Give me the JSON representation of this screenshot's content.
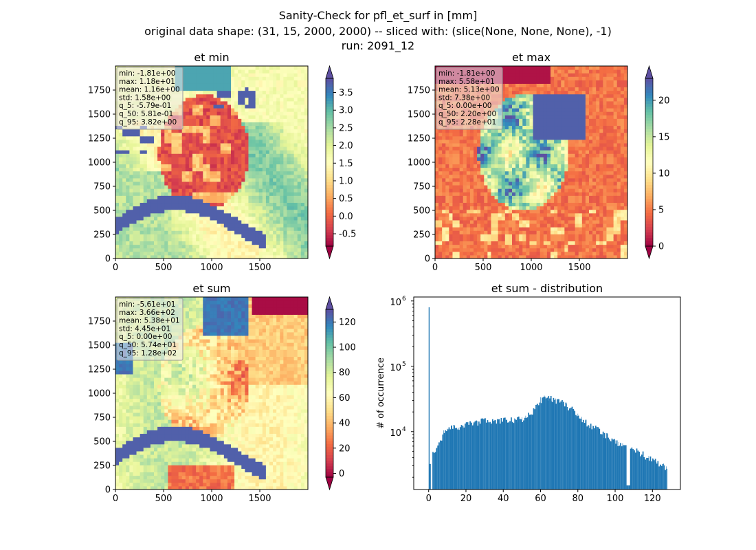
{
  "suptitle": {
    "line1": "Sanity-Check for pfl_et_surf in [mm]",
    "line2": "original data shape: (31, 15, 2000, 2000) -- sliced with: (slice(None, None, None), -1)",
    "line3": "run: 2091_12"
  },
  "colors": {
    "bar": "#1f77b4",
    "colormap": [
      "#9e0142",
      "#d53e4f",
      "#f46d43",
      "#fdae61",
      "#fee08b",
      "#ffffbf",
      "#e6f598",
      "#abdda4",
      "#66c2a5",
      "#3288bd",
      "#5e4fa2"
    ]
  },
  "chart_data": [
    {
      "type": "heatmap",
      "title": "et min",
      "colormap": "Spectral",
      "xlim": [
        0,
        2000
      ],
      "ylim": [
        0,
        2000
      ],
      "xticks": [
        "0",
        "500",
        "1000",
        "1500"
      ],
      "yticks": [
        "0",
        "250",
        "500",
        "750",
        "1000",
        "1250",
        "1500",
        "1750"
      ],
      "colorbar": {
        "range": [
          -0.85,
          3.9
        ],
        "extend": "both",
        "ticks": [
          "-0.5",
          "0.0",
          "0.5",
          "1.0",
          "1.5",
          "2.0",
          "2.5",
          "3.0",
          "3.5"
        ]
      },
      "stats": [
        "min: -1.81e+00",
        "max: 1.18e+01",
        "mean: 1.16e+00",
        "std: 1.58e+00",
        "q_5: -5.79e-01",
        "q_50: 5.81e-01",
        "q_95: 3.82e+00"
      ]
    },
    {
      "type": "heatmap",
      "title": "et max",
      "colormap": "Spectral",
      "xlim": [
        0,
        2000
      ],
      "ylim": [
        0,
        2000
      ],
      "xticks": [
        "0",
        "500",
        "1000",
        "1500"
      ],
      "yticks": [
        "0",
        "250",
        "500",
        "750",
        "1000",
        "1250",
        "1500",
        "1750"
      ],
      "colorbar": {
        "range": [
          0,
          23
        ],
        "extend": "both",
        "ticks": [
          "0",
          "5",
          "10",
          "15",
          "20"
        ]
      },
      "stats": [
        "min: -1.81e+00",
        "max: 5.58e+01",
        "mean: 5.13e+00",
        "std: 7.38e+00",
        "q_5: 0.00e+00",
        "q_50: 2.20e+00",
        "q_95: 2.28e+01"
      ]
    },
    {
      "type": "heatmap",
      "title": "et sum",
      "colormap": "Spectral",
      "xlim": [
        0,
        2000
      ],
      "ylim": [
        0,
        2000
      ],
      "xticks": [
        "0",
        "500",
        "1000",
        "1500"
      ],
      "yticks": [
        "0",
        "250",
        "500",
        "750",
        "1000",
        "1250",
        "1500",
        "1750"
      ],
      "colorbar": {
        "range": [
          -3,
          130
        ],
        "extend": "both",
        "ticks": [
          "0",
          "20",
          "40",
          "60",
          "80",
          "100",
          "120"
        ]
      },
      "stats": [
        "min: -5.61e+01",
        "max: 3.66e+02",
        "mean: 5.38e+01",
        "std: 4.45e+01",
        "q_5: 0.00e+00",
        "q_50: 5.74e+01",
        "q_95: 1.28e+02"
      ]
    },
    {
      "type": "bar",
      "title": "et sum - distribution",
      "xlabel": "",
      "ylabel": "# of occurrence",
      "yscale": "log",
      "xlim": [
        -8,
        135
      ],
      "ylim": [
        1300,
        1150000
      ],
      "xticks": [
        "0",
        "20",
        "40",
        "60",
        "80",
        "100",
        "120"
      ],
      "xtick_values": [
        0,
        20,
        40,
        60,
        80,
        100,
        120
      ],
      "yticks": [
        {
          "value": 10000,
          "label": "10",
          "exp": "4"
        },
        {
          "value": 100000,
          "label": "10",
          "exp": "5"
        },
        {
          "value": 1000000,
          "label": "10",
          "exp": "6"
        }
      ],
      "bin_width": 0.64,
      "bins": [
        {
          "x": 0.0,
          "y": 800000
        },
        {
          "x": 0.5,
          "y": 3200
        },
        {
          "x": 2,
          "y": 4500
        },
        {
          "x": 4,
          "y": 5400
        },
        {
          "x": 6,
          "y": 7200
        },
        {
          "x": 8,
          "y": 9500
        },
        {
          "x": 10,
          "y": 10800
        },
        {
          "x": 12,
          "y": 11200
        },
        {
          "x": 14,
          "y": 11800
        },
        {
          "x": 16,
          "y": 11300
        },
        {
          "x": 18,
          "y": 12000
        },
        {
          "x": 20,
          "y": 12800
        },
        {
          "x": 22,
          "y": 13300
        },
        {
          "x": 24,
          "y": 13800
        },
        {
          "x": 26,
          "y": 13600
        },
        {
          "x": 28,
          "y": 14200
        },
        {
          "x": 30,
          "y": 14800
        },
        {
          "x": 32,
          "y": 14500
        },
        {
          "x": 34,
          "y": 14000
        },
        {
          "x": 36,
          "y": 13700
        },
        {
          "x": 38,
          "y": 14400
        },
        {
          "x": 40,
          "y": 14800
        },
        {
          "x": 42,
          "y": 14600
        },
        {
          "x": 44,
          "y": 15000
        },
        {
          "x": 46,
          "y": 15500
        },
        {
          "x": 48,
          "y": 15200
        },
        {
          "x": 50,
          "y": 15800
        },
        {
          "x": 52,
          "y": 16500
        },
        {
          "x": 54,
          "y": 18000
        },
        {
          "x": 56,
          "y": 21000
        },
        {
          "x": 58,
          "y": 25000
        },
        {
          "x": 60,
          "y": 31000
        },
        {
          "x": 62,
          "y": 37000
        },
        {
          "x": 64,
          "y": 33000
        },
        {
          "x": 66,
          "y": 31000
        },
        {
          "x": 68,
          "y": 29000
        },
        {
          "x": 70,
          "y": 28000
        },
        {
          "x": 72,
          "y": 27000
        },
        {
          "x": 74,
          "y": 24000
        },
        {
          "x": 76,
          "y": 22000
        },
        {
          "x": 78,
          "y": 20500
        },
        {
          "x": 80,
          "y": 18500
        },
        {
          "x": 82,
          "y": 15500
        },
        {
          "x": 84,
          "y": 14000
        },
        {
          "x": 86,
          "y": 12500
        },
        {
          "x": 88,
          "y": 11800
        },
        {
          "x": 90,
          "y": 11000
        },
        {
          "x": 92,
          "y": 9800
        },
        {
          "x": 94,
          "y": 9000
        },
        {
          "x": 96,
          "y": 8200
        },
        {
          "x": 98,
          "y": 7500
        },
        {
          "x": 100,
          "y": 7000
        },
        {
          "x": 102,
          "y": 6500
        },
        {
          "x": 104,
          "y": 6200
        },
        {
          "x": 106,
          "y": 1500
        },
        {
          "x": 108,
          "y": 5600
        },
        {
          "x": 110,
          "y": 5200
        },
        {
          "x": 112,
          "y": 4900
        },
        {
          "x": 114,
          "y": 4600
        },
        {
          "x": 116,
          "y": 4200
        },
        {
          "x": 118,
          "y": 4000
        },
        {
          "x": 120,
          "y": 3800
        },
        {
          "x": 122,
          "y": 3500
        },
        {
          "x": 124,
          "y": 3200
        },
        {
          "x": 126,
          "y": 3000
        },
        {
          "x": 127.5,
          "y": 2700
        }
      ]
    }
  ]
}
